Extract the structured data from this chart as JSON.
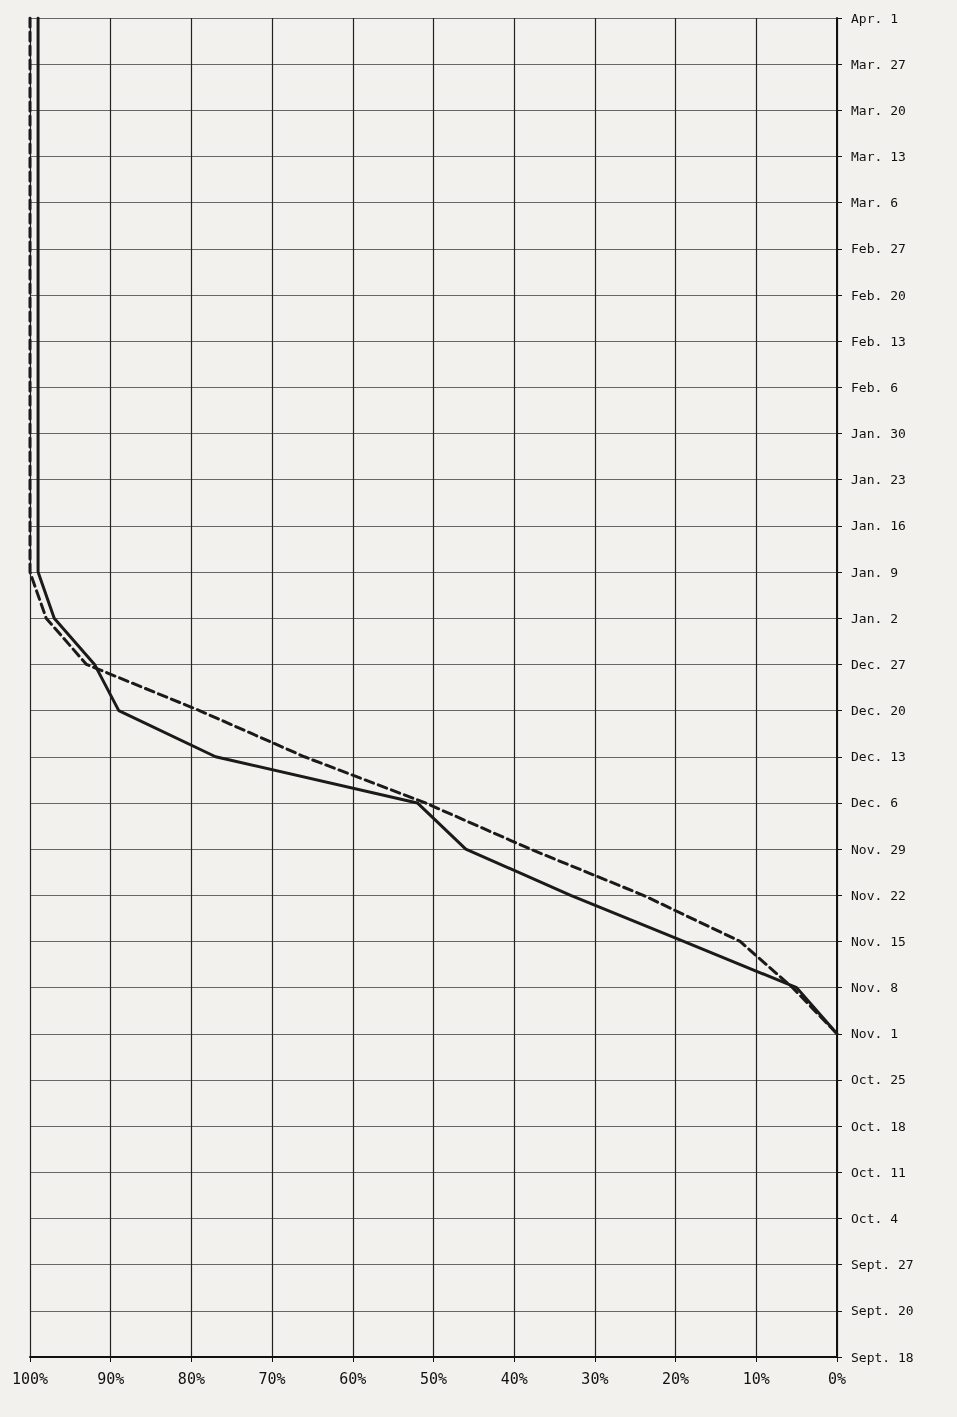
{
  "chart_data": {
    "type": "line",
    "orientation": "horizontal",
    "categories": [
      "Apr. 1",
      "Mar. 27",
      "Mar. 20",
      "Mar. 13",
      "Mar. 6",
      "Feb. 27",
      "Feb. 20",
      "Feb. 13",
      "Feb. 6",
      "Jan. 30",
      "Jan. 23",
      "Jan. 16",
      "Jan. 9",
      "Jan. 2",
      "Dec. 27",
      "Dec. 20",
      "Dec. 13",
      "Dec. 6",
      "Nov. 29",
      "Nov. 22",
      "Nov. 15",
      "Nov. 8",
      "Nov. 1",
      "Oct. 25",
      "Oct. 18",
      "Oct. 11",
      "Oct. 4",
      "Sept. 27",
      "Sept. 20",
      "Sept. 18"
    ],
    "series": [
      {
        "color": "#1a1a1a",
        "line_style": "solid",
        "values": [
          99,
          99,
          99,
          99,
          99,
          99,
          99,
          99,
          99,
          99,
          99,
          99,
          99,
          97,
          92,
          89,
          77,
          52,
          46,
          33,
          19,
          5,
          0,
          null,
          null,
          null,
          null,
          null,
          null,
          null
        ]
      },
      {
        "color": "#1a1a1a",
        "line_style": "dashed",
        "values": [
          100,
          100,
          100,
          100,
          100,
          100,
          100,
          100,
          100,
          100,
          100,
          100,
          100,
          98,
          93,
          79,
          66,
          51,
          38,
          24,
          12,
          5.5,
          0,
          null,
          null,
          null,
          null,
          null,
          null,
          null
        ]
      }
    ],
    "xlim": [
      100,
      0
    ],
    "xticks": [
      {
        "value": 100,
        "label": "100%"
      },
      {
        "value": 90,
        "label": "90%"
      },
      {
        "value": 80,
        "label": "80%"
      },
      {
        "value": 70,
        "label": "70%"
      },
      {
        "value": 60,
        "label": "60%"
      },
      {
        "value": 50,
        "label": "50%"
      },
      {
        "value": 40,
        "label": "40%"
      },
      {
        "value": 30,
        "label": "30%"
      },
      {
        "value": 20,
        "label": "20%"
      },
      {
        "value": 10,
        "label": "10%"
      },
      {
        "value": 0,
        "label": "0%"
      }
    ],
    "grid": true,
    "marker": "none"
  }
}
